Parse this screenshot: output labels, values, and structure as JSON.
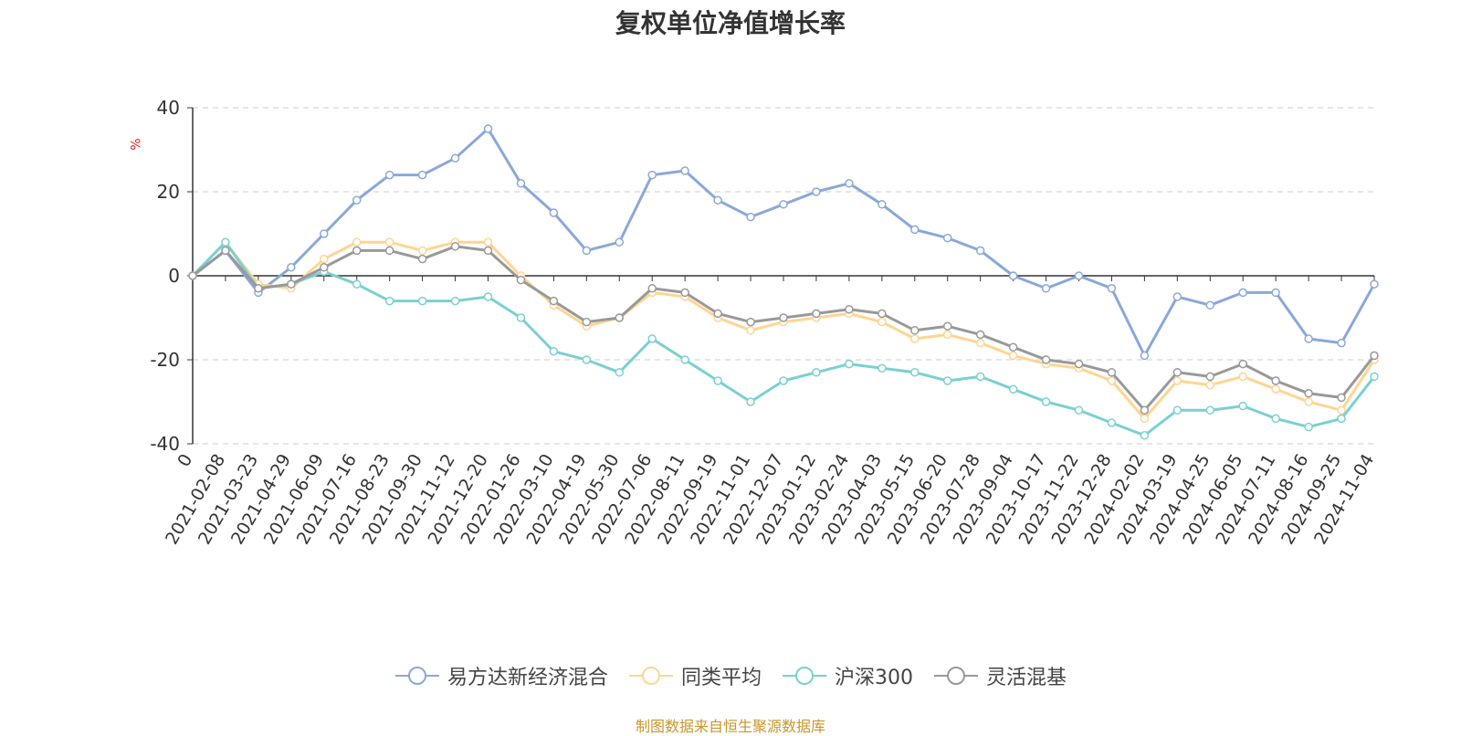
{
  "chart_data": {
    "type": "line",
    "title": "复权单位净值增长率",
    "ylabel": "%",
    "xlabel": "",
    "ylim": [
      -40,
      40
    ],
    "yticks": [
      40,
      20,
      0,
      -20,
      -40
    ],
    "grid": true,
    "legend_position": "bottom",
    "categories": [
      "0",
      "2021-02-08",
      "2021-03-23",
      "2021-04-29",
      "2021-06-09",
      "2021-07-16",
      "2021-08-23",
      "2021-09-30",
      "2021-11-12",
      "2021-12-20",
      "2022-01-26",
      "2022-03-10",
      "2022-04-19",
      "2022-05-30",
      "2022-07-06",
      "2022-08-11",
      "2022-09-19",
      "2022-11-01",
      "2022-12-07",
      "2023-01-12",
      "2023-02-24",
      "2023-04-03",
      "2023-05-15",
      "2023-06-20",
      "2023-07-28",
      "2023-09-04",
      "2023-10-17",
      "2023-11-22",
      "2023-12-28",
      "2024-02-02",
      "2024-03-19",
      "2024-04-25",
      "2024-06-05",
      "2024-07-11",
      "2024-08-16",
      "2024-09-25",
      "2024-11-04"
    ],
    "series": [
      {
        "name": "易方达新经济混合",
        "color": "#8aa8d8",
        "values": [
          0,
          6,
          -4,
          2,
          10,
          18,
          24,
          24,
          28,
          35,
          22,
          15,
          6,
          8,
          24,
          25,
          18,
          14,
          17,
          20,
          22,
          17,
          11,
          9,
          6,
          0,
          -3,
          0,
          -3,
          -19,
          -5,
          -7,
          -4,
          -4,
          -15,
          -16,
          -2
        ]
      },
      {
        "name": "同类平均",
        "color": "#ffd591",
        "values": [
          0,
          8,
          -2,
          -3,
          4,
          8,
          8,
          6,
          8,
          8,
          0,
          -7,
          -12,
          -10,
          -4,
          -5,
          -10,
          -13,
          -11,
          -10,
          -9,
          -11,
          -15,
          -14,
          -16,
          -19,
          -21,
          -22,
          -25,
          -34,
          -25,
          -26,
          -24,
          -27,
          -30,
          -32,
          -20
        ]
      },
      {
        "name": "沪深300",
        "color": "#7ad0d2",
        "values": [
          0,
          8,
          -3,
          -2,
          1,
          -2,
          -6,
          -6,
          -6,
          -5,
          -10,
          -18,
          -20,
          -23,
          -15,
          -20,
          -25,
          -30,
          -25,
          -23,
          -21,
          -22,
          -23,
          -25,
          -24,
          -27,
          -30,
          -32,
          -35,
          -38,
          -32,
          -32,
          -31,
          -34,
          -36,
          -34,
          -24
        ]
      },
      {
        "name": "灵活混基",
        "color": "#999999",
        "values": [
          0,
          6,
          -3,
          -2,
          2,
          6,
          6,
          4,
          7,
          6,
          -1,
          -6,
          -11,
          -10,
          -3,
          -4,
          -9,
          -11,
          -10,
          -9,
          -8,
          -9,
          -13,
          -12,
          -14,
          -17,
          -20,
          -21,
          -23,
          -32,
          -23,
          -24,
          -21,
          -25,
          -28,
          -29,
          -19
        ]
      }
    ]
  },
  "source_note": "制图数据来自恒生聚源数据库"
}
